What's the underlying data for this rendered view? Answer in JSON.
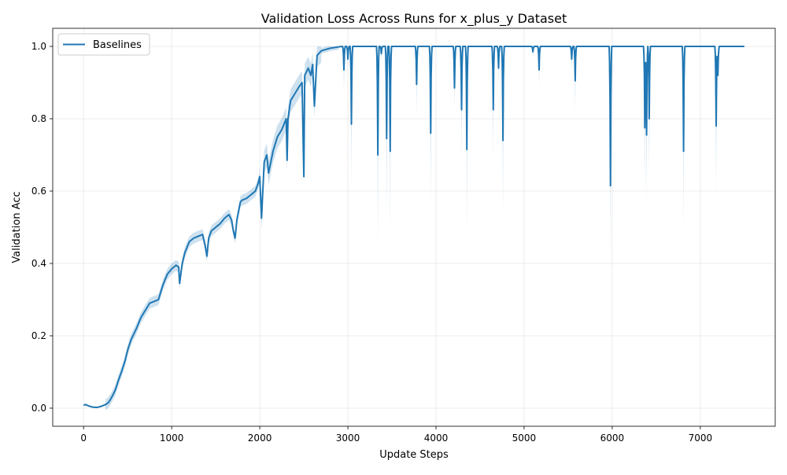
{
  "chart_data": {
    "type": "line",
    "title": "Validation Loss Across Runs for x_plus_y Dataset",
    "xlabel": "Update Steps",
    "ylabel": "Validation Acc",
    "xlim": [
      -350,
      7850
    ],
    "ylim": [
      -0.05,
      1.05
    ],
    "xticks": [
      0,
      1000,
      2000,
      3000,
      4000,
      5000,
      6000,
      7000
    ],
    "yticks": [
      0.0,
      0.2,
      0.4,
      0.6,
      0.8,
      1.0
    ],
    "grid": true,
    "legend_position": "upper left",
    "color": "#1f77b4",
    "band_opacity": 0.22,
    "series": [
      {
        "name": "Baselines",
        "x_start": 0,
        "x_end": 7500,
        "curve": [
          [
            0,
            0.008
          ],
          [
            20,
            0.01
          ],
          [
            60,
            0.006
          ],
          [
            100,
            0.003
          ],
          [
            150,
            0.002
          ],
          [
            200,
            0.005
          ],
          [
            250,
            0.01
          ],
          [
            280,
            0.015
          ],
          [
            300,
            0.022
          ],
          [
            330,
            0.035
          ],
          [
            360,
            0.05
          ],
          [
            400,
            0.08
          ],
          [
            430,
            0.1
          ],
          [
            470,
            0.13
          ],
          [
            500,
            0.16
          ],
          [
            540,
            0.19
          ],
          [
            600,
            0.22
          ],
          [
            650,
            0.25
          ],
          [
            700,
            0.27
          ],
          [
            750,
            0.29
          ],
          [
            800,
            0.295
          ],
          [
            850,
            0.3
          ],
          [
            900,
            0.34
          ],
          [
            950,
            0.37
          ],
          [
            1000,
            0.385
          ],
          [
            1050,
            0.395
          ],
          [
            1080,
            0.39
          ],
          [
            1090,
            0.345
          ],
          [
            1120,
            0.4
          ],
          [
            1150,
            0.43
          ],
          [
            1200,
            0.46
          ],
          [
            1250,
            0.47
          ],
          [
            1300,
            0.475
          ],
          [
            1350,
            0.48
          ],
          [
            1380,
            0.45
          ],
          [
            1400,
            0.42
          ],
          [
            1420,
            0.47
          ],
          [
            1450,
            0.49
          ],
          [
            1500,
            0.5
          ],
          [
            1550,
            0.51
          ],
          [
            1600,
            0.525
          ],
          [
            1650,
            0.535
          ],
          [
            1680,
            0.52
          ],
          [
            1700,
            0.49
          ],
          [
            1720,
            0.47
          ],
          [
            1740,
            0.52
          ],
          [
            1780,
            0.57
          ],
          [
            1800,
            0.575
          ],
          [
            1850,
            0.58
          ],
          [
            1900,
            0.59
          ],
          [
            1950,
            0.6
          ],
          [
            1980,
            0.62
          ],
          [
            2000,
            0.64
          ],
          [
            2020,
            0.525
          ],
          [
            2050,
            0.68
          ],
          [
            2080,
            0.7
          ],
          [
            2100,
            0.65
          ],
          [
            2150,
            0.71
          ],
          [
            2200,
            0.75
          ],
          [
            2250,
            0.77
          ],
          [
            2300,
            0.8
          ],
          [
            2310,
            0.685
          ],
          [
            2320,
            0.8
          ],
          [
            2350,
            0.85
          ],
          [
            2400,
            0.87
          ],
          [
            2450,
            0.89
          ],
          [
            2480,
            0.9
          ],
          [
            2500,
            0.64
          ],
          [
            2510,
            0.92
          ],
          [
            2550,
            0.94
          ],
          [
            2580,
            0.92
          ],
          [
            2600,
            0.95
          ],
          [
            2620,
            0.835
          ],
          [
            2650,
            0.975
          ],
          [
            2700,
            0.988
          ],
          [
            2800,
            0.995
          ],
          [
            2900,
            0.999
          ],
          [
            2940,
            1.0
          ],
          [
            7500,
            1.0
          ]
        ],
        "dips": [
          [
            2955,
            0.935,
            0.875
          ],
          [
            3000,
            0.965,
            0.93
          ],
          [
            3040,
            0.785,
            0.61
          ],
          [
            3340,
            0.7,
            0.45
          ],
          [
            3380,
            0.98,
            0.96
          ],
          [
            3440,
            0.745,
            0.535
          ],
          [
            3480,
            0.71,
            0.475
          ],
          [
            3780,
            0.895,
            0.81
          ],
          [
            3940,
            0.76,
            0.56
          ],
          [
            4210,
            0.885,
            0.825
          ],
          [
            4290,
            0.825,
            0.685
          ],
          [
            4350,
            0.715,
            0.48
          ],
          [
            4650,
            0.825,
            0.685
          ],
          [
            4710,
            0.94,
            0.9
          ],
          [
            4760,
            0.74,
            0.535
          ],
          [
            5100,
            0.985,
            0.97
          ],
          [
            5170,
            0.935,
            0.89
          ],
          [
            5540,
            0.965,
            0.93
          ],
          [
            5580,
            0.905,
            0.82
          ],
          [
            5980,
            0.615,
            0.38
          ],
          [
            6370,
            0.775,
            0.59
          ],
          [
            6390,
            0.755,
            0.56
          ],
          [
            6420,
            0.8,
            0.65
          ],
          [
            6810,
            0.71,
            0.49
          ],
          [
            7180,
            0.78,
            0.595
          ],
          [
            7200,
            0.92,
            0.86
          ]
        ]
      }
    ]
  }
}
